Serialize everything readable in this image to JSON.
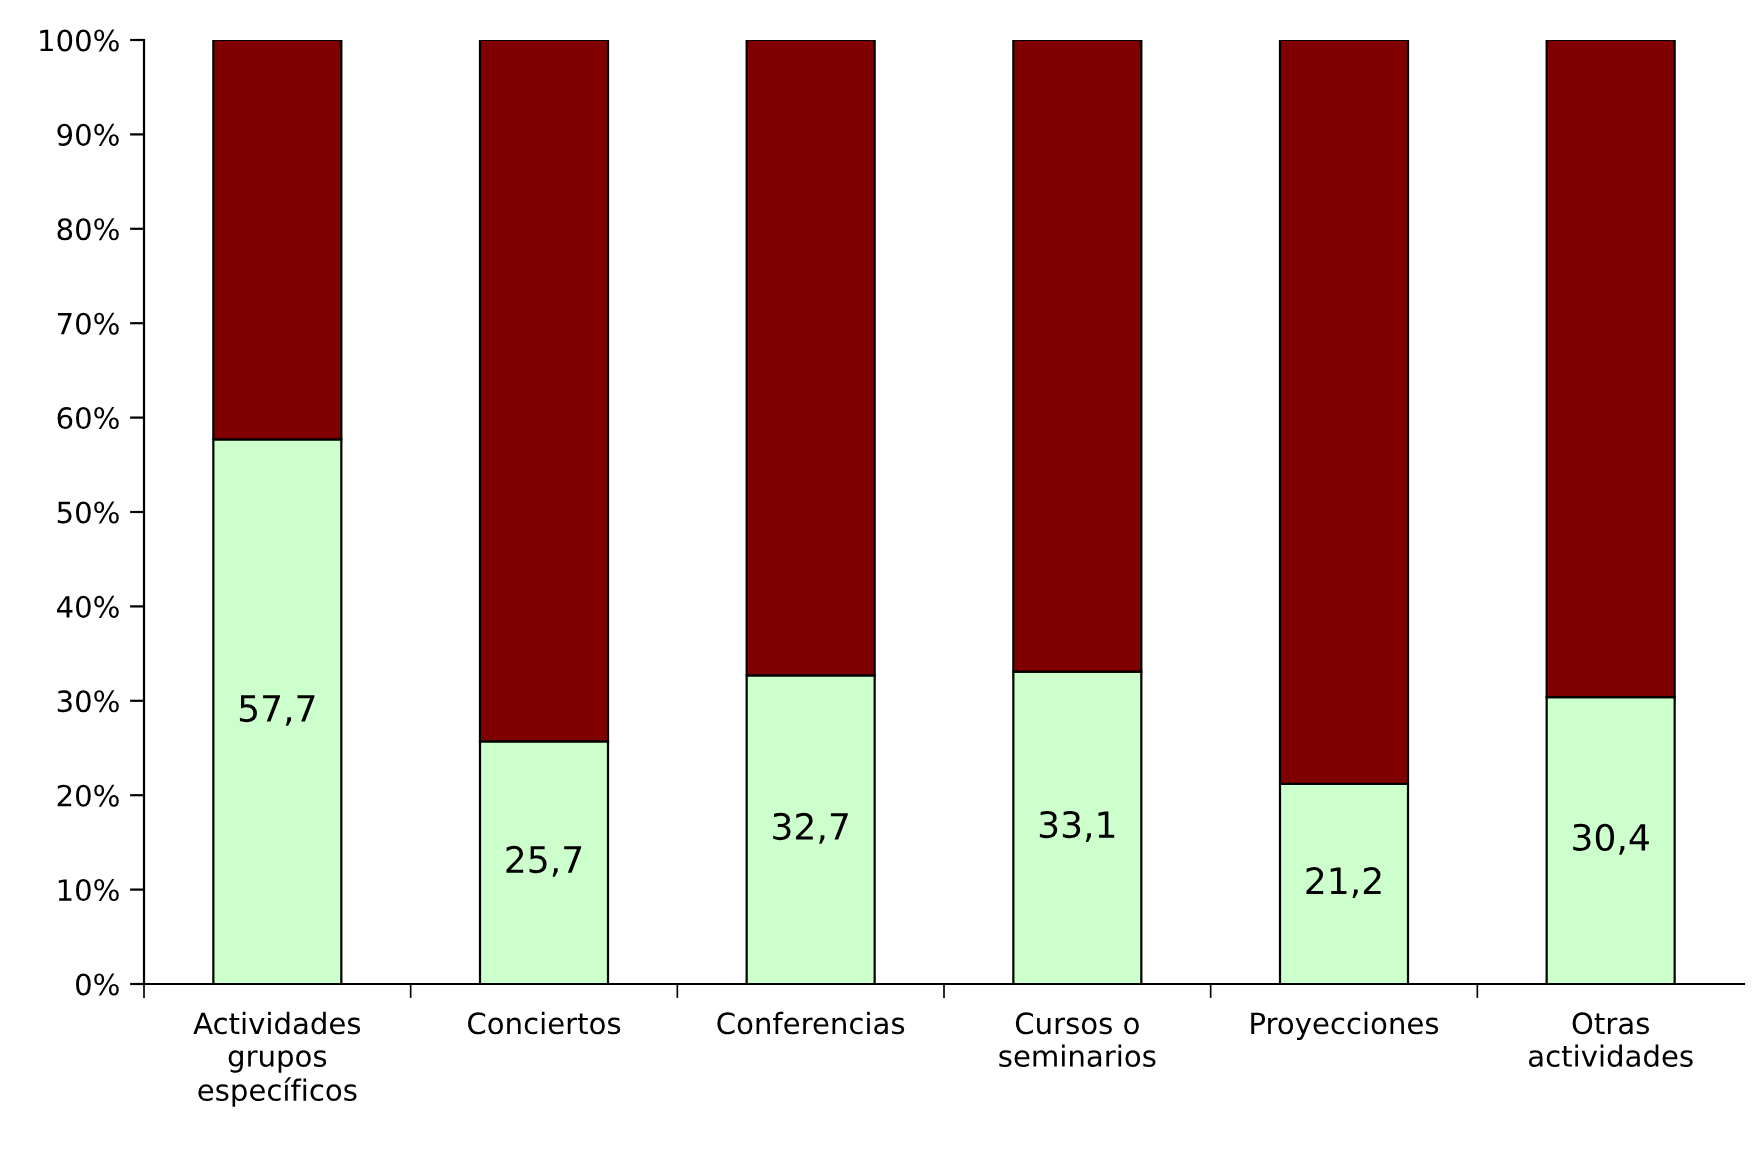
{
  "chart_data": {
    "type": "bar",
    "stacked": true,
    "categories": [
      "Actividades\ngrupos\nespecíficos",
      "Conciertos",
      "Conferencias",
      "Cursos o\nseminarios",
      "Proyecciones",
      "Otras\nactividades"
    ],
    "series": [
      {
        "color": "#ccffcc",
        "values": [
          57.7,
          25.7,
          32.7,
          33.1,
          21.2,
          30.4
        ],
        "value_labels": [
          "57,7",
          "25,7",
          "32,7",
          "33,1",
          "21,2",
          "30,4"
        ]
      },
      {
        "color": "#800000",
        "values": [
          42.3,
          74.3,
          67.3,
          66.9,
          78.8,
          69.6
        ]
      }
    ],
    "ylim": [
      0,
      100
    ],
    "yticks": [
      {
        "value": 0,
        "label": "0%"
      },
      {
        "value": 10,
        "label": "10%"
      },
      {
        "value": 20,
        "label": "20%"
      },
      {
        "value": 30,
        "label": "30%"
      },
      {
        "value": 40,
        "label": "40%"
      },
      {
        "value": 50,
        "label": "50%"
      },
      {
        "value": 60,
        "label": "60%"
      },
      {
        "value": 70,
        "label": "70%"
      },
      {
        "value": 80,
        "label": "80%"
      },
      {
        "value": 90,
        "label": "90%"
      },
      {
        "value": 100,
        "label": "100%"
      }
    ],
    "grid": false,
    "legend": false
  }
}
